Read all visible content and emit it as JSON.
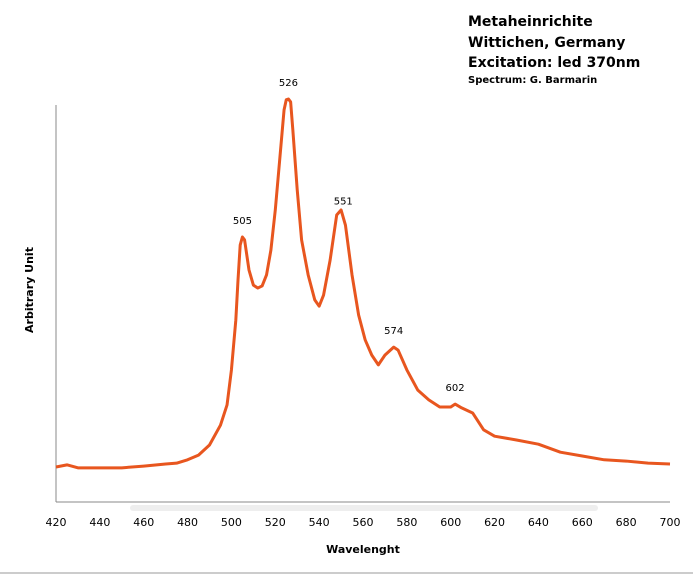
{
  "chart_data": {
    "type": "line",
    "title_lines": [
      "Metaheinrichite",
      "Wittichen, Germany",
      "Excitation: led 370nm"
    ],
    "subtitle": "Spectrum: G. Barmarin",
    "x_label": "Wavelenght",
    "y_label": "Arbitrary Unit",
    "color": "#e8561f",
    "grid": false,
    "x": [
      420,
      425,
      430,
      440,
      450,
      460,
      470,
      475,
      480,
      485,
      490,
      495,
      498,
      500,
      502,
      503,
      504,
      505,
      506,
      508,
      510,
      512,
      514,
      516,
      518,
      520,
      522,
      524,
      525,
      526,
      527,
      528,
      530,
      532,
      535,
      538,
      540,
      542,
      545,
      548,
      550,
      552,
      555,
      558,
      561,
      564,
      567,
      570,
      574,
      576,
      580,
      585,
      590,
      595,
      600,
      602,
      605,
      610,
      615,
      620,
      630,
      640,
      650,
      660,
      670,
      680,
      690,
      700
    ],
    "values": [
      8.3,
      8.8,
      8.1,
      8.1,
      8.1,
      8.5,
      9.0,
      9.2,
      10.0,
      11.1,
      13.5,
      18.2,
      23.0,
      31.3,
      43.1,
      52.6,
      60.9,
      62.8,
      62.1,
      55.0,
      51.4,
      50.7,
      51.2,
      53.8,
      59.7,
      69.2,
      81.0,
      92.9,
      95.3,
      95.5,
      94.8,
      88.2,
      74.0,
      62.1,
      53.8,
      47.9,
      46.4,
      49.0,
      57.3,
      68.0,
      69.2,
      65.6,
      53.8,
      44.3,
      38.4,
      34.8,
      32.5,
      34.8,
      36.7,
      36.0,
      31.3,
      26.5,
      24.2,
      22.5,
      22.5,
      23.2,
      22.3,
      21.1,
      17.1,
      15.6,
      14.7,
      13.7,
      11.8,
      10.9,
      10.0,
      9.7,
      9.2,
      9.0
    ],
    "peak_labels": [
      505,
      526,
      551,
      574,
      602
    ],
    "xlim": [
      420,
      700
    ],
    "xticks": [
      420,
      440,
      460,
      480,
      500,
      520,
      540,
      560,
      580,
      600,
      620,
      640,
      660,
      680,
      700
    ],
    "ylim": [
      0,
      100
    ]
  }
}
